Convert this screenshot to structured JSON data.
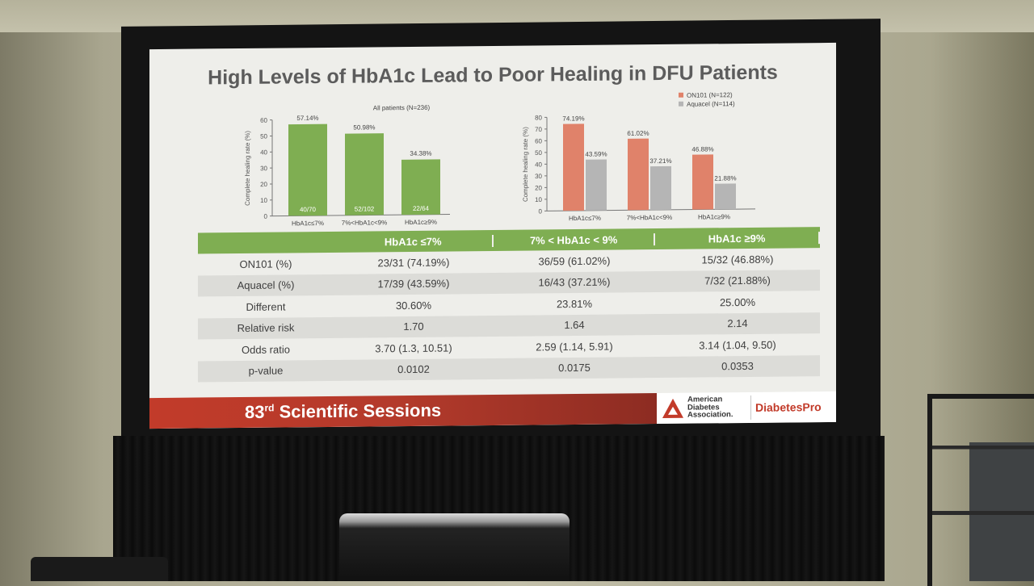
{
  "slide": {
    "title": "High Levels of HbA1c Lead to Poor Healing in DFU Patients",
    "footer": {
      "sessions_number": "83",
      "sessions_suffix": "rd",
      "sessions_text": "Scientific Sessions",
      "org_line1": "American",
      "org_line2": "Diabetes",
      "org_line3": "Association.",
      "brand": "DiabetesPro"
    }
  },
  "chart_data": [
    {
      "type": "bar",
      "title": "All patients (N=236)",
      "ylabel": "Complete healing rate (%)",
      "ylim": [
        0,
        60
      ],
      "yticks": [
        "0",
        "10",
        "20",
        "30",
        "40",
        "50",
        "60"
      ],
      "categories": [
        "HbA1c≤7%",
        "7%<HbA1c<9%",
        "HbA1c≥9%"
      ],
      "values": [
        57.14,
        50.98,
        34.38
      ],
      "value_labels": [
        "57.14%",
        "50.98%",
        "34.38%"
      ],
      "count_labels": [
        "40/70",
        "52/102",
        "22/64"
      ],
      "color": "#7fae52"
    },
    {
      "type": "bar",
      "ylabel": "Complete healing rate (%)",
      "ylim": [
        0,
        80
      ],
      "yticks": [
        "0",
        "10",
        "20",
        "30",
        "40",
        "50",
        "60",
        "70",
        "80"
      ],
      "categories": [
        "HbA1c≤7%",
        "7%<HbA1c<9%",
        "HbA1c≥9%"
      ],
      "series": [
        {
          "name": "ON101 (N=122)",
          "values": [
            74.19,
            61.02,
            46.88
          ],
          "labels": [
            "74.19%",
            "61.02%",
            "46.88%"
          ],
          "color": "#e0826a"
        },
        {
          "name": "Aquacel (N=114)",
          "values": [
            43.59,
            37.21,
            21.88
          ],
          "labels": [
            "43.59%",
            "37.21%",
            "21.88%"
          ],
          "color": "#b5b5b5"
        }
      ],
      "legend": "top-right"
    }
  ],
  "table": {
    "headers": [
      "",
      "HbA1c ≤7%",
      "7% < HbA1c < 9%",
      "HbA1c ≥9%"
    ],
    "rows": [
      [
        "ON101 (%)",
        "23/31  (74.19%)",
        "36/59  (61.02%)",
        "15/32  (46.88%)"
      ],
      [
        "Aquacel (%)",
        "17/39  (43.59%)",
        "16/43  (37.21%)",
        "7/32    (21.88%)"
      ],
      [
        "Different",
        "30.60%",
        "23.81%",
        "25.00%"
      ],
      [
        "Relative risk",
        "1.70",
        "1.64",
        "2.14"
      ],
      [
        "Odds ratio",
        "3.70 (1.3, 10.51)",
        "2.59 (1.14, 5.91)",
        "3.14 (1.04, 9.50)"
      ],
      [
        "p-value",
        "0.0102",
        "0.0175",
        "0.0353"
      ]
    ]
  }
}
